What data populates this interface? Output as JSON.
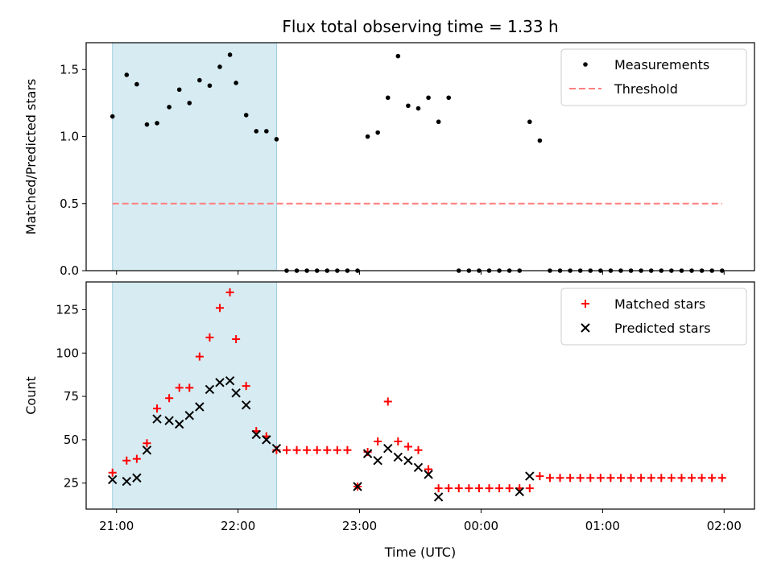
{
  "figure": {
    "title": "Flux total observing time = 1.33 h"
  },
  "chart_data": [
    {
      "type": "scatter",
      "panel": "top",
      "ylabel": "Matched/Predicted stars",
      "xlabel": "",
      "xlim": [
        "20:45",
        "02:15"
      ],
      "ylim": [
        0,
        1.7
      ],
      "yticks": [
        0.0,
        0.5,
        1.0,
        1.5
      ],
      "ytick_labels": [
        "0.0",
        "0.5",
        "1.0",
        "1.5"
      ],
      "grid": false,
      "legend_position": "top-right",
      "shaded_interval": [
        "20:58",
        "22:19"
      ],
      "shaded_color": "#add8e6",
      "series": [
        {
          "name": "Measurements",
          "marker": "dot",
          "color": "#000000",
          "x": [
            "20:58",
            "21:05",
            "21:10",
            "21:15",
            "21:20",
            "21:26",
            "21:31",
            "21:36",
            "21:41",
            "21:46",
            "21:51",
            "21:56",
            "21:59",
            "22:04",
            "22:09",
            "22:14",
            "22:19",
            "22:24",
            "22:29",
            "22:34",
            "22:39",
            "22:44",
            "22:49",
            "22:54",
            "22:59",
            "23:04",
            "23:09",
            "23:14",
            "23:19",
            "23:24",
            "23:29",
            "23:34",
            "23:39",
            "23:44",
            "23:49",
            "23:54",
            "23:59",
            "00:04",
            "00:09",
            "00:14",
            "00:19",
            "00:24",
            "00:29",
            "00:34",
            "00:39",
            "00:44",
            "00:49",
            "00:54",
            "00:59",
            "01:04",
            "01:09",
            "01:14",
            "01:19",
            "01:24",
            "01:29",
            "01:34",
            "01:39",
            "01:44",
            "01:49",
            "01:54",
            "01:59"
          ],
          "y": [
            1.15,
            1.46,
            1.39,
            1.09,
            1.1,
            1.22,
            1.35,
            1.25,
            1.42,
            1.38,
            1.52,
            1.61,
            1.4,
            1.16,
            1.04,
            1.04,
            0.98,
            0,
            0,
            0,
            0,
            0,
            0,
            0,
            0,
            1.0,
            1.03,
            1.29,
            1.6,
            1.23,
            1.21,
            1.29,
            1.11,
            1.29,
            0,
            0,
            0,
            0,
            0,
            0,
            0,
            1.11,
            0.97,
            0,
            0,
            0,
            0,
            0,
            0,
            0,
            0,
            0,
            0,
            0,
            0,
            0,
            0,
            0,
            0,
            0,
            0
          ]
        },
        {
          "name": "Threshold",
          "marker": "dashed-line",
          "color": "#ff7f7f",
          "x": [
            "20:58",
            "01:59"
          ],
          "y": [
            0.5,
            0.5
          ]
        }
      ]
    },
    {
      "type": "scatter",
      "panel": "bottom",
      "ylabel": "Count",
      "xlabel": "Time (UTC)",
      "xlim": [
        "20:45",
        "02:15"
      ],
      "ylim": [
        10,
        141
      ],
      "yticks": [
        25,
        50,
        75,
        100,
        125
      ],
      "ytick_labels": [
        "25",
        "50",
        "75",
        "100",
        "125"
      ],
      "xticks": [
        "21:00",
        "22:00",
        "23:00",
        "00:00",
        "01:00",
        "02:00"
      ],
      "xtick_labels": [
        "21:00",
        "22:00",
        "23:00",
        "00:00",
        "01:00",
        "02:00"
      ],
      "grid": false,
      "legend_position": "top-right",
      "shaded_interval": [
        "20:58",
        "22:19"
      ],
      "shaded_color": "#add8e6",
      "series": [
        {
          "name": "Matched stars",
          "marker": "plus",
          "color": "#ff0000",
          "x": [
            "20:58",
            "21:05",
            "21:10",
            "21:15",
            "21:20",
            "21:26",
            "21:31",
            "21:36",
            "21:41",
            "21:46",
            "21:51",
            "21:56",
            "21:59",
            "22:04",
            "22:09",
            "22:14",
            "22:19",
            "22:24",
            "22:29",
            "22:34",
            "22:39",
            "22:44",
            "22:49",
            "22:54",
            "22:59",
            "23:04",
            "23:09",
            "23:14",
            "23:19",
            "23:24",
            "23:29",
            "23:34",
            "23:39",
            "23:44",
            "23:49",
            "23:54",
            "23:59",
            "00:04",
            "00:09",
            "00:14",
            "00:19",
            "00:24",
            "00:29",
            "00:34",
            "00:39",
            "00:44",
            "00:49",
            "00:54",
            "00:59",
            "01:04",
            "01:09",
            "01:14",
            "01:19",
            "01:24",
            "01:29",
            "01:34",
            "01:39",
            "01:44",
            "01:49",
            "01:54",
            "01:59"
          ],
          "y": [
            31,
            38,
            39,
            48,
            68,
            74,
            80,
            80,
            98,
            109,
            126,
            135,
            108,
            81,
            55,
            52,
            44,
            44,
            44,
            44,
            44,
            44,
            44,
            44,
            23,
            43,
            49,
            72,
            49,
            46,
            44,
            33,
            22,
            22,
            22,
            22,
            22,
            22,
            22,
            22,
            22,
            22,
            29,
            28,
            28,
            28,
            28,
            28,
            28,
            28,
            28,
            28,
            28,
            28,
            28,
            28,
            28,
            28,
            28,
            28,
            28
          ]
        },
        {
          "name": "Predicted stars",
          "marker": "x",
          "color": "#000000",
          "x": [
            "20:58",
            "21:05",
            "21:10",
            "21:15",
            "21:20",
            "21:26",
            "21:31",
            "21:36",
            "21:41",
            "21:46",
            "21:51",
            "21:56",
            "21:59",
            "22:04",
            "22:09",
            "22:14",
            "22:19",
            "22:59",
            "23:04",
            "23:09",
            "23:14",
            "23:19",
            "23:24",
            "23:29",
            "23:34",
            "23:39",
            "00:19",
            "00:24"
          ],
          "y": [
            27,
            26,
            28,
            44,
            62,
            61,
            59,
            64,
            69,
            79,
            83,
            84,
            77,
            70,
            53,
            50,
            45,
            23,
            42,
            38,
            45,
            40,
            38,
            34,
            30,
            17,
            20,
            29
          ]
        }
      ]
    }
  ]
}
